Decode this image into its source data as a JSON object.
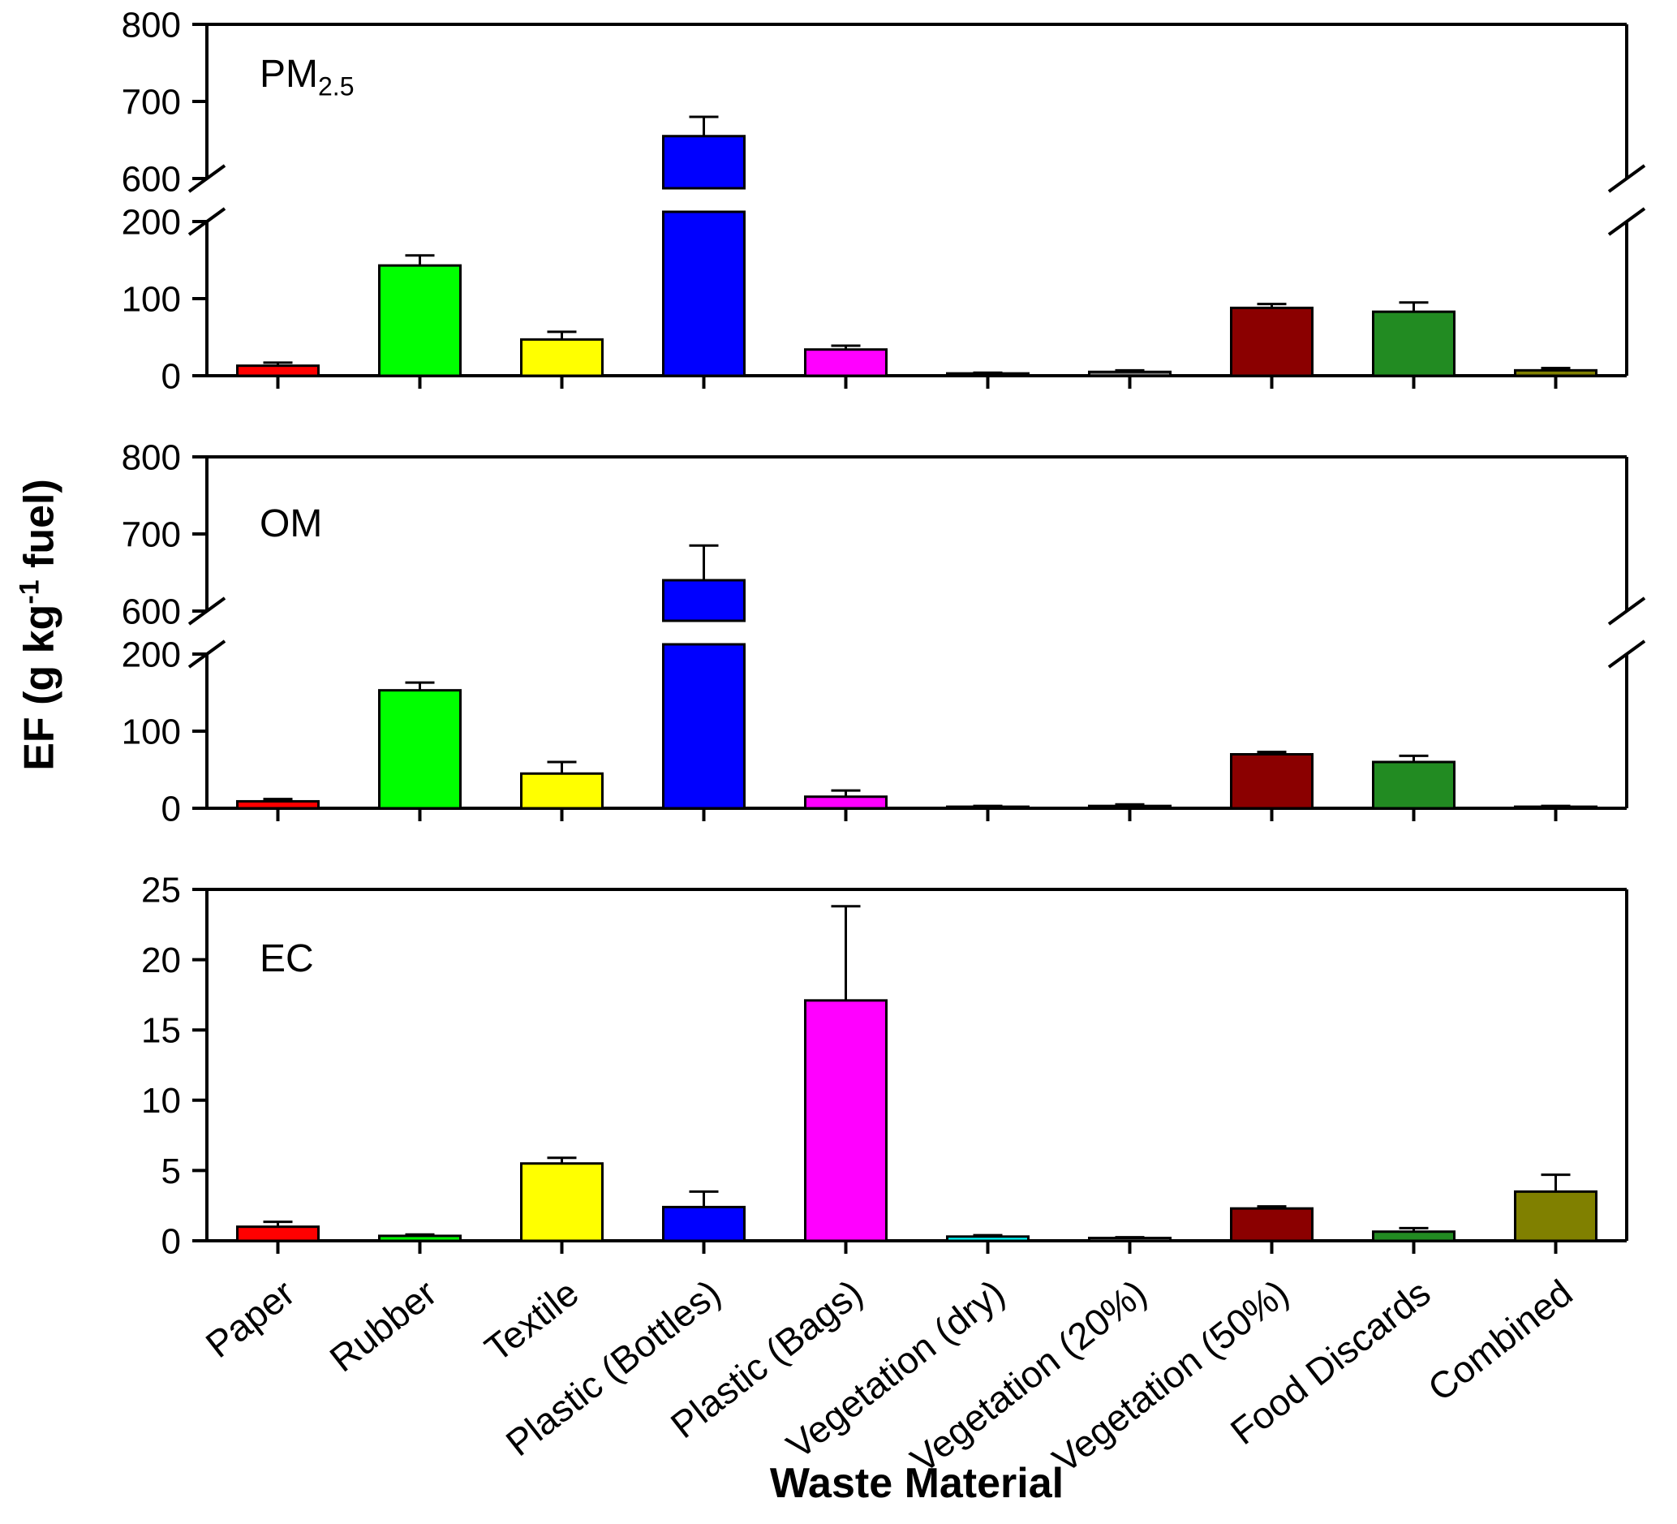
{
  "figure": {
    "y_axis_title": {
      "prefix": "EF (g kg",
      "sup": "-1",
      "suffix": " fuel)"
    },
    "x_axis_title": "Waste Material",
    "background": "#FFFFFF"
  },
  "chart_data": {
    "type": "bar",
    "title": "",
    "xlabel": "Waste Material",
    "ylabel": "EF (g kg-1 fuel)",
    "grid": false,
    "legend": "none",
    "categories": [
      "Paper",
      "Rubber",
      "Textile",
      "Plastic (Bottles)",
      "Plastic (Bags)",
      "Vegetation (dry)",
      "Vegetation (20%)",
      "Vegetation (50%)",
      "Food Discards",
      "Combined"
    ],
    "bar_colors": [
      "#FF0000",
      "#00FF00",
      "#FFFF00",
      "#0000FF",
      "#FF00FF",
      "#00FFFF",
      "#808080",
      "#8B0000",
      "#228B22",
      "#808000"
    ],
    "panels": [
      {
        "label": "PM2.5",
        "label_main": "PM",
        "label_sub": "2.5",
        "broken_axis": true,
        "ylim_segments": [
          [
            0,
            200
          ],
          [
            600,
            800
          ]
        ],
        "yticks": [
          0,
          100,
          200,
          600,
          700,
          800
        ],
        "values": [
          13,
          143,
          47,
          655,
          34,
          3,
          5,
          88,
          83,
          7
        ],
        "errors": [
          4,
          13,
          10,
          25,
          5,
          1,
          2,
          5,
          12,
          3
        ]
      },
      {
        "label": "OM",
        "label_main": "OM",
        "label_sub": "",
        "broken_axis": true,
        "ylim_segments": [
          [
            0,
            200
          ],
          [
            600,
            800
          ]
        ],
        "yticks": [
          0,
          100,
          200,
          600,
          700,
          800
        ],
        "values": [
          9,
          153,
          45,
          640,
          15,
          2,
          3,
          70,
          60,
          2
        ],
        "errors": [
          3,
          10,
          15,
          45,
          8,
          1,
          2,
          3,
          8,
          1
        ]
      },
      {
        "label": "EC",
        "label_main": "EC",
        "label_sub": "",
        "broken_axis": false,
        "ylim": [
          0,
          25
        ],
        "yticks": [
          0,
          5,
          10,
          15,
          20,
          25
        ],
        "values": [
          1.0,
          0.35,
          5.5,
          2.4,
          17.1,
          0.3,
          0.2,
          2.3,
          0.65,
          3.5
        ],
        "errors": [
          0.35,
          0.1,
          0.4,
          1.1,
          6.7,
          0.1,
          0.05,
          0.15,
          0.25,
          1.2
        ]
      }
    ]
  }
}
